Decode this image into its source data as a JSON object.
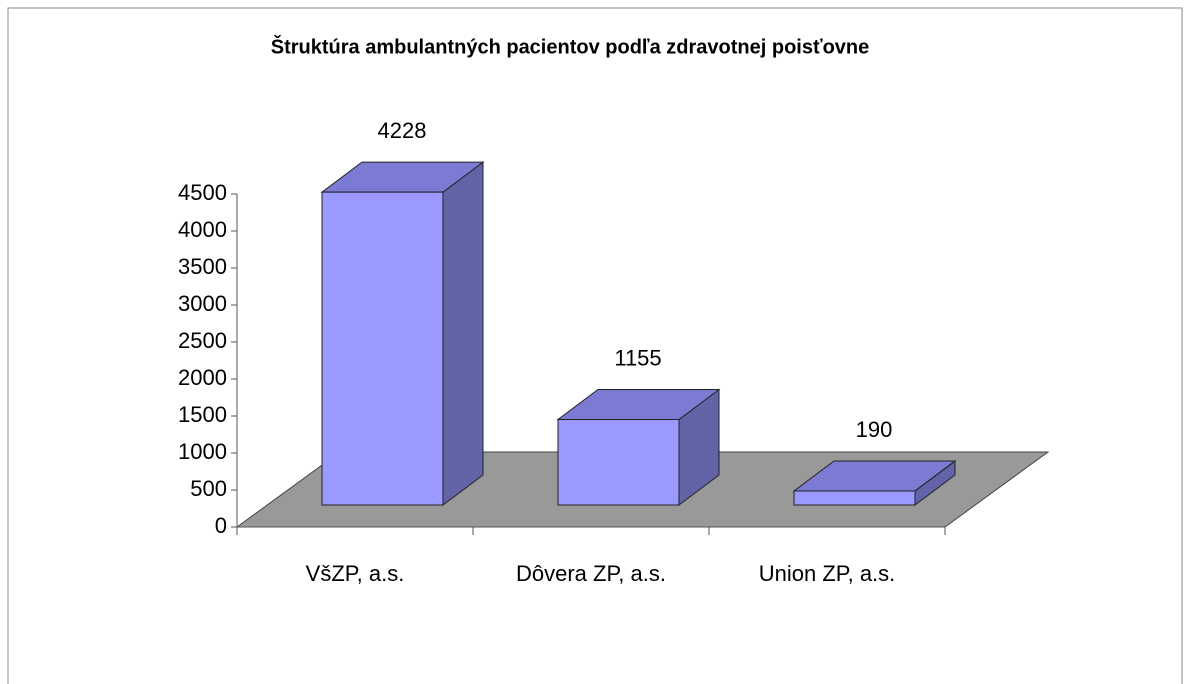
{
  "chart_data": {
    "type": "bar3d",
    "title": "Štruktúra ambulantných pacientov podľa zdravotnej poisťovne",
    "categories": [
      "VšZP, a.s.",
      "Dôvera ZP, a.s.",
      "Union ZP, a.s."
    ],
    "values": [
      4228,
      1155,
      190
    ],
    "color": "#9999ff",
    "ylim": [
      0,
      4500
    ],
    "yticks": [
      0,
      500,
      1000,
      1500,
      2000,
      2500,
      3000,
      3500,
      4000,
      4500
    ]
  }
}
